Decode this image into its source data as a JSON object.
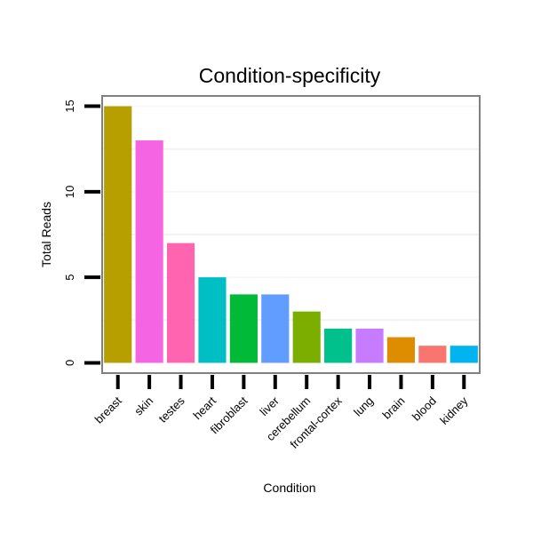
{
  "chart_data": {
    "type": "bar",
    "title": "Condition-specificity",
    "xlabel": "Condition",
    "ylabel": "Total Reads",
    "ylim": [
      -0.6,
      15.6
    ],
    "yticks": [
      0,
      5,
      10,
      15
    ],
    "grid": true,
    "categories": [
      "breast",
      "skin",
      "testes",
      "heart",
      "fibroblast",
      "liver",
      "cerebellum",
      "frontal-cortex",
      "lung",
      "brain",
      "blood",
      "kidney"
    ],
    "values": [
      15,
      13,
      7,
      5,
      4,
      4,
      3,
      2,
      2,
      1.5,
      1,
      1
    ],
    "colors": [
      "#B79F00",
      "#F564E3",
      "#FF64B0",
      "#00BFC4",
      "#00BA38",
      "#619CFF",
      "#7CAE00",
      "#00C08B",
      "#C77CFF",
      "#DE8C00",
      "#F8766D",
      "#00B4F0"
    ]
  }
}
